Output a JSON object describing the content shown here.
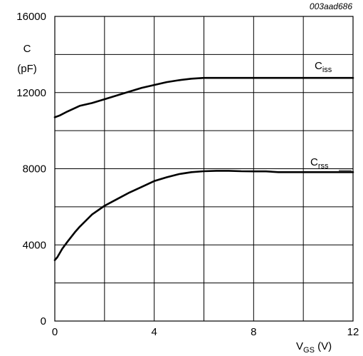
{
  "figure_id": "003aad686",
  "chart_data": {
    "type": "line",
    "xlabel_main": "V",
    "xlabel_sub": "GS",
    "xlabel_unit": " (V)",
    "ylabel_line1": "C",
    "ylabel_line2": "(pF)",
    "xlim": [
      0,
      12
    ],
    "ylim": [
      0,
      16000
    ],
    "x_ticks": [
      0,
      4,
      8,
      12
    ],
    "y_ticks": [
      0,
      4000,
      8000,
      12000,
      16000
    ],
    "x_grid": [
      0,
      2,
      4,
      6,
      8,
      10,
      12
    ],
    "y_grid": [
      0,
      2000,
      4000,
      6000,
      8000,
      10000,
      12000,
      14000,
      16000
    ],
    "grid": true,
    "series": [
      {
        "name": "Ciss",
        "label_main": "C",
        "label_sub": "iss",
        "x": [
          0,
          0.2,
          0.5,
          1,
          1.5,
          2,
          2.5,
          3,
          3.5,
          4,
          4.5,
          5,
          5.5,
          6,
          7,
          8,
          9,
          10,
          11,
          12
        ],
        "y": [
          10700,
          10800,
          11000,
          11300,
          11450,
          11650,
          11850,
          12050,
          12250,
          12400,
          12550,
          12650,
          12730,
          12770,
          12770,
          12770,
          12770,
          12770,
          12770,
          12770
        ]
      },
      {
        "name": "Crss",
        "label_main": "C",
        "label_sub": "rss",
        "x": [
          0,
          0.1,
          0.3,
          0.5,
          0.8,
          1,
          1.5,
          2,
          2.5,
          3,
          3.5,
          4,
          4.5,
          5,
          5.5,
          6,
          6.5,
          7,
          7.5,
          8,
          8.5,
          9,
          10,
          11,
          12
        ],
        "y": [
          3200,
          3350,
          3800,
          4150,
          4650,
          4950,
          5600,
          6050,
          6400,
          6750,
          7050,
          7350,
          7550,
          7720,
          7820,
          7870,
          7890,
          7890,
          7870,
          7860,
          7860,
          7820,
          7820,
          7820,
          7820
        ]
      }
    ]
  }
}
